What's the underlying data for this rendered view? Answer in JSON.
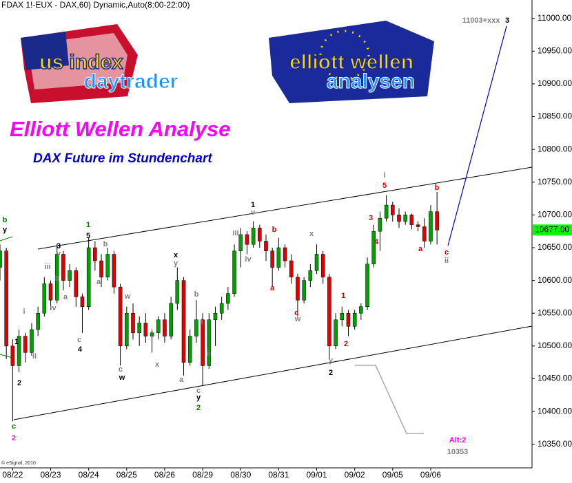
{
  "chart_data": {
    "type": "candlestick",
    "header": "FDAX 1!-EUX - DAX,60) Dynamic,Auto(8:00-22:00)",
    "title": "Elliott Wellen Analyse",
    "subtitle": "DAX Future im Stundenchart",
    "copyright": "© eSignal, 2010",
    "logos": [
      {
        "lines": [
          "us index",
          "daytrader"
        ]
      },
      {
        "lines": [
          "elliott wellen",
          "analysen"
        ]
      }
    ],
    "up_color": "#00a000",
    "down_color": "#e00000",
    "x": [
      -2,
      -1,
      0,
      1,
      2,
      3,
      4,
      5,
      6,
      7,
      8,
      9,
      10,
      11,
      12,
      13,
      14,
      15,
      16,
      17,
      18,
      19,
      20,
      21,
      22,
      23,
      24,
      25,
      26,
      27,
      28,
      29,
      30,
      31,
      32,
      33,
      34,
      35,
      36,
      37,
      38,
      39,
      40,
      41,
      42,
      43,
      44,
      45,
      46,
      47,
      48,
      49,
      50,
      51,
      52,
      53,
      54,
      55,
      56,
      57,
      58,
      59,
      60,
      61,
      62,
      63,
      64,
      65,
      66,
      67
    ],
    "open": [
      10620,
      10645,
      10500,
      10470,
      10515,
      10490,
      10525,
      10550,
      10595,
      10570,
      10640,
      10600,
      10615,
      10575,
      10560,
      10650,
      10630,
      10605,
      10640,
      10590,
      10500,
      10550,
      10520,
      10535,
      10515,
      10520,
      10540,
      10515,
      10565,
      10600,
      10475,
      10515,
      10540,
      10470,
      10540,
      10550,
      10565,
      10580,
      10645,
      10670,
      10655,
      10680,
      10660,
      10645,
      10620,
      10650,
      10630,
      10605,
      10570,
      10600,
      10615,
      10640,
      10605,
      10500,
      10540,
      10550,
      10530,
      10550,
      10560,
      10625,
      10675,
      10695,
      10715,
      10700,
      10690,
      10700,
      10685,
      10682,
      10660,
      10705
    ],
    "high": [
      10655,
      10650,
      10510,
      10525,
      10520,
      10535,
      10560,
      10605,
      10600,
      10655,
      10645,
      10625,
      10620,
      10580,
      10665,
      10660,
      10640,
      10650,
      10645,
      10595,
      10560,
      10565,
      10545,
      10550,
      10525,
      10545,
      10550,
      10575,
      10620,
      10605,
      10525,
      10570,
      10550,
      10550,
      10560,
      10575,
      10590,
      10655,
      10680,
      10675,
      10690,
      10685,
      10670,
      10650,
      10665,
      10655,
      10640,
      10610,
      10605,
      10625,
      10655,
      10645,
      10610,
      10550,
      10560,
      10555,
      10555,
      10565,
      10635,
      10685,
      10705,
      10730,
      10720,
      10710,
      10705,
      10702,
      10690,
      10695,
      10715,
      10735
    ],
    "low": [
      10600,
      10480,
      10385,
      10460,
      10475,
      10485,
      10515,
      10545,
      10555,
      10565,
      10585,
      10590,
      10560,
      10520,
      10555,
      10615,
      10590,
      10600,
      10580,
      10470,
      10495,
      10510,
      10500,
      10505,
      10490,
      10510,
      10505,
      10510,
      10555,
      10455,
      10470,
      10505,
      10440,
      10465,
      10500,
      10540,
      10555,
      10575,
      10620,
      10640,
      10650,
      10650,
      10630,
      10590,
      10615,
      10620,
      10595,
      10545,
      10565,
      10590,
      10610,
      10595,
      10480,
      10495,
      10530,
      10515,
      10525,
      10540,
      10555,
      10620,
      10645,
      10690,
      10690,
      10680,
      10685,
      10678,
      10675,
      10650,
      10655,
      10655
    ],
    "close": [
      10645,
      10500,
      10470,
      10515,
      10490,
      10525,
      10550,
      10595,
      10570,
      10640,
      10600,
      10615,
      10575,
      10560,
      10650,
      10630,
      10605,
      10640,
      10590,
      10500,
      10550,
      10520,
      10535,
      10515,
      10520,
      10540,
      10515,
      10565,
      10600,
      10475,
      10515,
      10540,
      10470,
      10540,
      10550,
      10565,
      10580,
      10645,
      10670,
      10655,
      10680,
      10660,
      10645,
      10620,
      10650,
      10630,
      10605,
      10570,
      10600,
      10615,
      10640,
      10605,
      10500,
      10540,
      10550,
      10530,
      10550,
      10560,
      10625,
      10675,
      10695,
      10715,
      10700,
      10690,
      10700,
      10685,
      10682,
      10660,
      10705,
      10677
    ],
    "xlim": [
      -2,
      82
    ],
    "xticks": [
      {
        "value": 0,
        "label": "08/22"
      },
      {
        "value": 6,
        "label": "08/23"
      },
      {
        "value": 12,
        "label": "08/24"
      },
      {
        "value": 18,
        "label": "08/25"
      },
      {
        "value": 24,
        "label": "08/26"
      },
      {
        "value": 30,
        "label": "08/29"
      },
      {
        "value": 36,
        "label": "08/30"
      },
      {
        "value": 42,
        "label": "08/31"
      },
      {
        "value": 48,
        "label": "09/01"
      },
      {
        "value": 54,
        "label": "09/02"
      },
      {
        "value": 60,
        "label": "09/05"
      },
      {
        "value": 66,
        "label": "09/06"
      }
    ],
    "ylim": [
      10314,
      11028
    ],
    "yticks": [
      {
        "value": 10350,
        "label": "10350.00"
      },
      {
        "value": 10400,
        "label": "10400.00"
      },
      {
        "value": 10450,
        "label": "10450.00"
      },
      {
        "value": 10500,
        "label": "10500.00"
      },
      {
        "value": 10550,
        "label": "10550.00"
      },
      {
        "value": 10600,
        "label": "10600.00"
      },
      {
        "value": 10650,
        "label": "10650.00"
      },
      {
        "value": 10700,
        "label": "10700.00"
      },
      {
        "value": 10750,
        "label": "10750.00"
      },
      {
        "value": 10800,
        "label": "10800.00"
      },
      {
        "value": 10850,
        "label": "10850.00"
      },
      {
        "value": 10900,
        "label": "10900.00"
      },
      {
        "value": 10950,
        "label": "10950.00"
      },
      {
        "value": 11000,
        "label": "11000.00"
      }
    ],
    "last_price": {
      "value": 10677,
      "label": "10677.00",
      "color": "#00ff00"
    },
    "annotations": [
      {
        "text": "b",
        "color": "#008000"
      },
      {
        "text": "y",
        "color": "#000000"
      },
      {
        "text": "1",
        "color": "#000000"
      },
      {
        "text": "2",
        "color": "#000000"
      },
      {
        "text": "c",
        "color": "#008000"
      },
      {
        "text": "2",
        "color": "#ff00ff"
      },
      {
        "text": "i",
        "color": "#808080"
      },
      {
        "text": "ii",
        "color": "#808080"
      },
      {
        "text": "iii",
        "color": "#808080"
      },
      {
        "text": "iv",
        "color": "#808080"
      },
      {
        "text": "3",
        "color": "#000000"
      },
      {
        "text": "v",
        "color": "#808080"
      },
      {
        "text": "b",
        "color": "#808080"
      },
      {
        "text": "a",
        "color": "#808080"
      },
      {
        "text": "c",
        "color": "#808080"
      },
      {
        "text": "4",
        "color": "#000000"
      },
      {
        "text": "1",
        "color": "#008000"
      },
      {
        "text": "5",
        "color": "#000000"
      },
      {
        "text": "b",
        "color": "#808080"
      },
      {
        "text": "a",
        "color": "#808080"
      },
      {
        "text": "w",
        "color": "#808080"
      },
      {
        "text": "c",
        "color": "#808080"
      },
      {
        "text": "w",
        "color": "#000000"
      },
      {
        "text": "x",
        "color": "#808080"
      },
      {
        "text": "x",
        "color": "#000000"
      },
      {
        "text": "y",
        "color": "#808080"
      },
      {
        "text": "b",
        "color": "#808080"
      },
      {
        "text": "i",
        "color": "#808080"
      },
      {
        "text": "a",
        "color": "#808080"
      },
      {
        "text": "ii",
        "color": "#808080"
      },
      {
        "text": "c",
        "color": "#808080"
      },
      {
        "text": "y",
        "color": "#000000"
      },
      {
        "text": "2",
        "color": "#008000"
      },
      {
        "text": "iii",
        "color": "#808080"
      },
      {
        "text": "iv",
        "color": "#808080"
      },
      {
        "text": "1",
        "color": "#000000"
      },
      {
        "text": "v",
        "color": "#808080"
      },
      {
        "text": "b",
        "color": "#e00000"
      },
      {
        "text": "a",
        "color": "#e00000"
      },
      {
        "text": "x",
        "color": "#808080"
      },
      {
        "text": "c",
        "color": "#e00000"
      },
      {
        "text": "w",
        "color": "#808080"
      },
      {
        "text": "y",
        "color": "#808080"
      },
      {
        "text": "2",
        "color": "#000000"
      },
      {
        "text": "1",
        "color": "#e00000"
      },
      {
        "text": "2",
        "color": "#e00000"
      },
      {
        "text": "3",
        "color": "#e00000"
      },
      {
        "text": "4",
        "color": "#e00000"
      },
      {
        "text": "i",
        "color": "#808080"
      },
      {
        "text": "5",
        "color": "#e00000"
      },
      {
        "text": "a",
        "color": "#e00000"
      },
      {
        "text": "b",
        "color": "#e00000"
      },
      {
        "text": "c",
        "color": "#e00000"
      },
      {
        "text": "ii",
        "color": "#808080"
      },
      {
        "text": "11003+xxx",
        "color": "#808080"
      },
      {
        "text": "3",
        "color": "#000000"
      },
      {
        "text": "Alt:2",
        "color": "#ff00ff"
      },
      {
        "text": "10353",
        "color": "#808080"
      }
    ]
  }
}
